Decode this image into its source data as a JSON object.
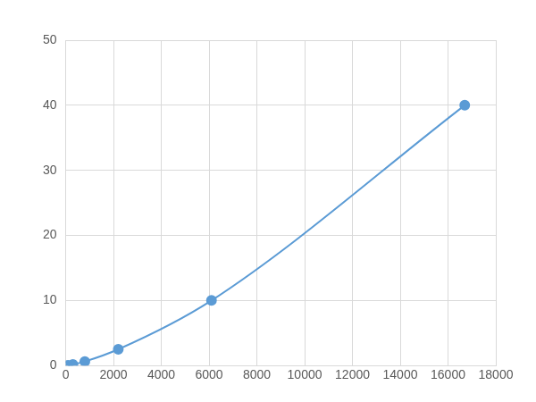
{
  "chart_data": {
    "type": "scatter",
    "x": [
      100,
      300,
      800,
      2200,
      6100,
      16700
    ],
    "values": [
      0.039,
      0.156,
      0.625,
      2.5,
      10,
      40
    ],
    "color": "#5b9bd5",
    "marker": "circle",
    "line_style": "solid",
    "xlim": [
      0,
      18000
    ],
    "xticks": [
      0,
      2000,
      4000,
      6000,
      8000,
      10000,
      12000,
      14000,
      16000,
      18000
    ],
    "ylim": [
      0,
      50
    ],
    "yticks": [
      0,
      10,
      20,
      30,
      40,
      50
    ],
    "grid": true
  }
}
